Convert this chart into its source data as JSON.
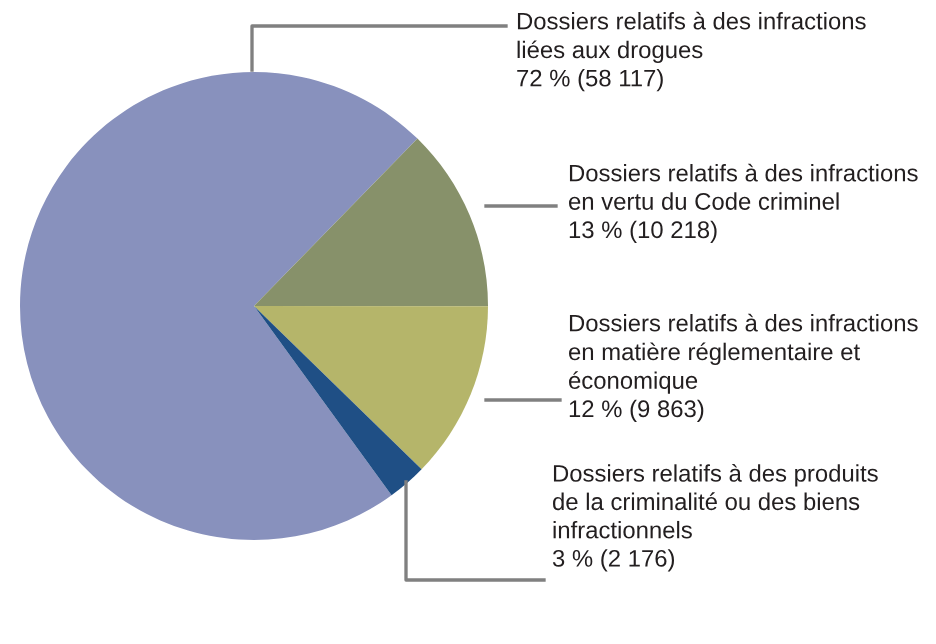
{
  "chart_data": {
    "type": "pie",
    "categories": [
      "Dossiers relatifs à des infractions\nliées aux drogues",
      "Dossiers relatifs à des infractions\nen vertu du Code criminel",
      "Dossiers relatifs à des infractions\nen matière réglementaire et\néconomique",
      "Dossiers relatifs à des produits\nde la criminalité ou des biens\ninfractionnels"
    ],
    "values": [
      58117,
      10218,
      9863,
      2176
    ],
    "value_labels": [
      "72 % (58 117)",
      "13 % (10 218)",
      "12 % (9 863)",
      "3 % (2 176)"
    ],
    "colors": [
      "#8891bd",
      "#87916a",
      "#b5b56a",
      "#1f4f85"
    ]
  }
}
